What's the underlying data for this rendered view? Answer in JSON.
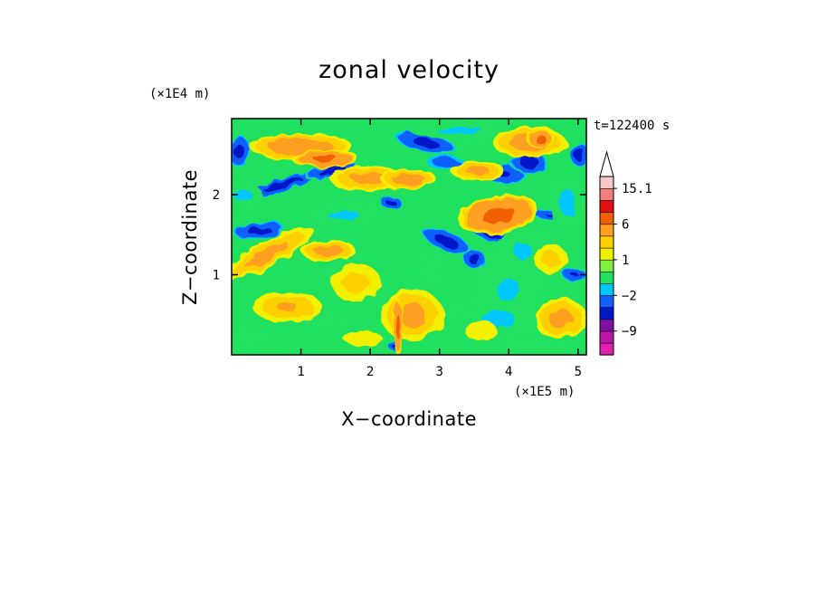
{
  "chart_data": {
    "type": "heatmap",
    "title": "zonal velocity",
    "xlabel": "X−coordinate",
    "ylabel": "Z−coordinate",
    "x_unit": "(×1E5 m)",
    "y_unit": "(×1E4 m)",
    "time_label": "t=122400 s",
    "xlim": [
      0,
      5.12
    ],
    "ylim": [
      0,
      2.95
    ],
    "x_ticks": [
      {
        "value": 1,
        "label": "1"
      },
      {
        "value": 2,
        "label": "2"
      },
      {
        "value": 3,
        "label": "3"
      },
      {
        "value": 4,
        "label": "4"
      },
      {
        "value": 5,
        "label": "5"
      }
    ],
    "y_ticks": [
      {
        "value": 1,
        "label": "1"
      },
      {
        "value": 2,
        "label": "2"
      }
    ],
    "colorbar": {
      "levels": [
        -15,
        -12,
        -9,
        -6,
        -3,
        -2,
        -1,
        0,
        1,
        2,
        3,
        6,
        9,
        12,
        15.1
      ],
      "colors": [
        "#e020b0",
        "#b818a8",
        "#8010a0",
        "#0018c8",
        "#1060ff",
        "#00c8ff",
        "#20e060",
        "#80f040",
        "#f0f000",
        "#ffd000",
        "#ffa020",
        "#f06000",
        "#e01010",
        "#f08080",
        "#f8c8c8"
      ],
      "labels": [
        {
          "value": 15.1,
          "text": "15.1"
        },
        {
          "value": 6,
          "text": "6"
        },
        {
          "value": 1,
          "text": "1"
        },
        {
          "value": -2,
          "text": "−2"
        },
        {
          "value": -9,
          "text": "−9"
        }
      ],
      "extend": "max"
    },
    "field_blobs": [
      {
        "x": 0.1,
        "z": 2.55,
        "rx": 0.14,
        "rz": 0.17,
        "v": -7
      },
      {
        "x": 0.75,
        "z": 2.12,
        "rx": 0.45,
        "rz": 0.07,
        "v": -8,
        "rot": -18
      },
      {
        "x": 1.45,
        "z": 2.3,
        "rx": 0.32,
        "rz": 0.07,
        "v": -8,
        "rot": -12
      },
      {
        "x": 2.3,
        "z": 1.9,
        "rx": 0.14,
        "rz": 0.06,
        "v": -7
      },
      {
        "x": 2.8,
        "z": 2.65,
        "rx": 0.38,
        "rz": 0.1,
        "v": -7,
        "rot": 12
      },
      {
        "x": 3.1,
        "z": 2.4,
        "rx": 0.25,
        "rz": 0.08,
        "v": -5
      },
      {
        "x": 3.95,
        "z": 2.25,
        "rx": 0.25,
        "rz": 0.1,
        "v": -6
      },
      {
        "x": 4.3,
        "z": 2.4,
        "rx": 0.22,
        "rz": 0.1,
        "v": -8
      },
      {
        "x": 5.02,
        "z": 2.5,
        "rx": 0.12,
        "rz": 0.12,
        "v": -8
      },
      {
        "x": 3.1,
        "z": 1.42,
        "rx": 0.3,
        "rz": 0.1,
        "v": -8,
        "rot": 22
      },
      {
        "x": 3.75,
        "z": 1.5,
        "rx": 0.25,
        "rz": 0.07,
        "v": -7,
        "rot": 14
      },
      {
        "x": 0.4,
        "z": 1.55,
        "rx": 0.32,
        "rz": 0.09,
        "v": -7,
        "rot": -5
      },
      {
        "x": 4.6,
        "z": 1.75,
        "rx": 0.2,
        "rz": 0.06,
        "v": -6
      },
      {
        "x": 4.95,
        "z": 1.0,
        "rx": 0.15,
        "rz": 0.08,
        "v": -6
      },
      {
        "x": 2.35,
        "z": 0.12,
        "rx": 0.08,
        "rz": 0.06,
        "v": -7
      },
      {
        "x": 3.5,
        "z": 1.2,
        "rx": 0.13,
        "rz": 0.1,
        "v": -8
      },
      {
        "x": 4.0,
        "z": 0.8,
        "rx": 0.5,
        "rz": 0.5,
        "v": -2
      },
      {
        "x": 4.2,
        "z": 1.3,
        "rx": 0.4,
        "rz": 0.3,
        "v": -2
      },
      {
        "x": 0.15,
        "z": 2.0,
        "rx": 0.3,
        "rz": 0.12,
        "v": -2.2
      },
      {
        "x": 3.3,
        "z": 2.8,
        "rx": 0.7,
        "rz": 0.1,
        "v": -2.2
      },
      {
        "x": 1.6,
        "z": 1.75,
        "rx": 0.45,
        "rz": 0.1,
        "v": -2.2,
        "rot": -10
      },
      {
        "x": 4.85,
        "z": 1.9,
        "rx": 0.25,
        "rz": 0.35,
        "v": -2.2
      },
      {
        "x": 3.85,
        "z": 0.45,
        "rx": 0.5,
        "rz": 0.25,
        "v": -2.2
      },
      {
        "x": 0.4,
        "z": 0.25,
        "rx": 0.35,
        "rz": 0.12,
        "v": -1.5
      },
      {
        "x": 1.3,
        "z": 0.45,
        "rx": 0.4,
        "rz": 0.1,
        "v": -1.5
      },
      {
        "x": 3.0,
        "z": 0.6,
        "rx": 0.4,
        "rz": 0.12,
        "v": -1.5
      },
      {
        "x": 2.9,
        "z": 1.1,
        "rx": 0.2,
        "rz": 0.15,
        "v": -1.5
      },
      {
        "x": 4.4,
        "z": 0.15,
        "rx": 0.5,
        "rz": 0.1,
        "v": -1.5
      },
      {
        "x": 1.0,
        "z": 2.6,
        "rx": 0.55,
        "rz": 0.12,
        "v": 5
      },
      {
        "x": 1.35,
        "z": 2.45,
        "rx": 0.35,
        "rz": 0.08,
        "v": 6.5
      },
      {
        "x": 2.0,
        "z": 2.2,
        "rx": 0.45,
        "rz": 0.12,
        "v": 3.5
      },
      {
        "x": 2.55,
        "z": 2.2,
        "rx": 0.3,
        "rz": 0.1,
        "v": 4.5
      },
      {
        "x": 3.85,
        "z": 1.75,
        "rx": 0.42,
        "rz": 0.17,
        "v": 7,
        "rot": -10
      },
      {
        "x": 4.3,
        "z": 2.65,
        "rx": 0.4,
        "rz": 0.15,
        "v": 4
      },
      {
        "x": 4.45,
        "z": 2.7,
        "rx": 0.15,
        "rz": 0.07,
        "v": 7
      },
      {
        "x": 0.5,
        "z": 1.25,
        "rx": 0.6,
        "rz": 0.12,
        "v": 3.5,
        "rot": -28
      },
      {
        "x": 1.4,
        "z": 1.3,
        "rx": 0.3,
        "rz": 0.1,
        "v": 4
      },
      {
        "x": 2.6,
        "z": 0.5,
        "rx": 0.35,
        "rz": 0.25,
        "v": 3.5
      },
      {
        "x": 2.4,
        "z": 0.35,
        "rx": 0.05,
        "rz": 0.25,
        "v": 7
      },
      {
        "x": 4.75,
        "z": 0.45,
        "rx": 0.3,
        "rz": 0.2,
        "v": 3.5
      },
      {
        "x": 0.8,
        "z": 0.6,
        "rx": 0.4,
        "rz": 0.15,
        "v": 3
      },
      {
        "x": 3.55,
        "z": 2.3,
        "rx": 0.3,
        "rz": 0.1,
        "v": 3.5
      },
      {
        "x": 4.6,
        "z": 1.2,
        "rx": 0.2,
        "rz": 0.15,
        "v": 2.5
      },
      {
        "x": 1.8,
        "z": 0.9,
        "rx": 0.3,
        "rz": 0.2,
        "v": 2.5
      },
      {
        "x": 1.9,
        "z": 0.2,
        "rx": 0.35,
        "rz": 0.12,
        "v": 1.5
      },
      {
        "x": 3.6,
        "z": 0.3,
        "rx": 0.3,
        "rz": 0.15,
        "v": 1.5
      }
    ]
  }
}
